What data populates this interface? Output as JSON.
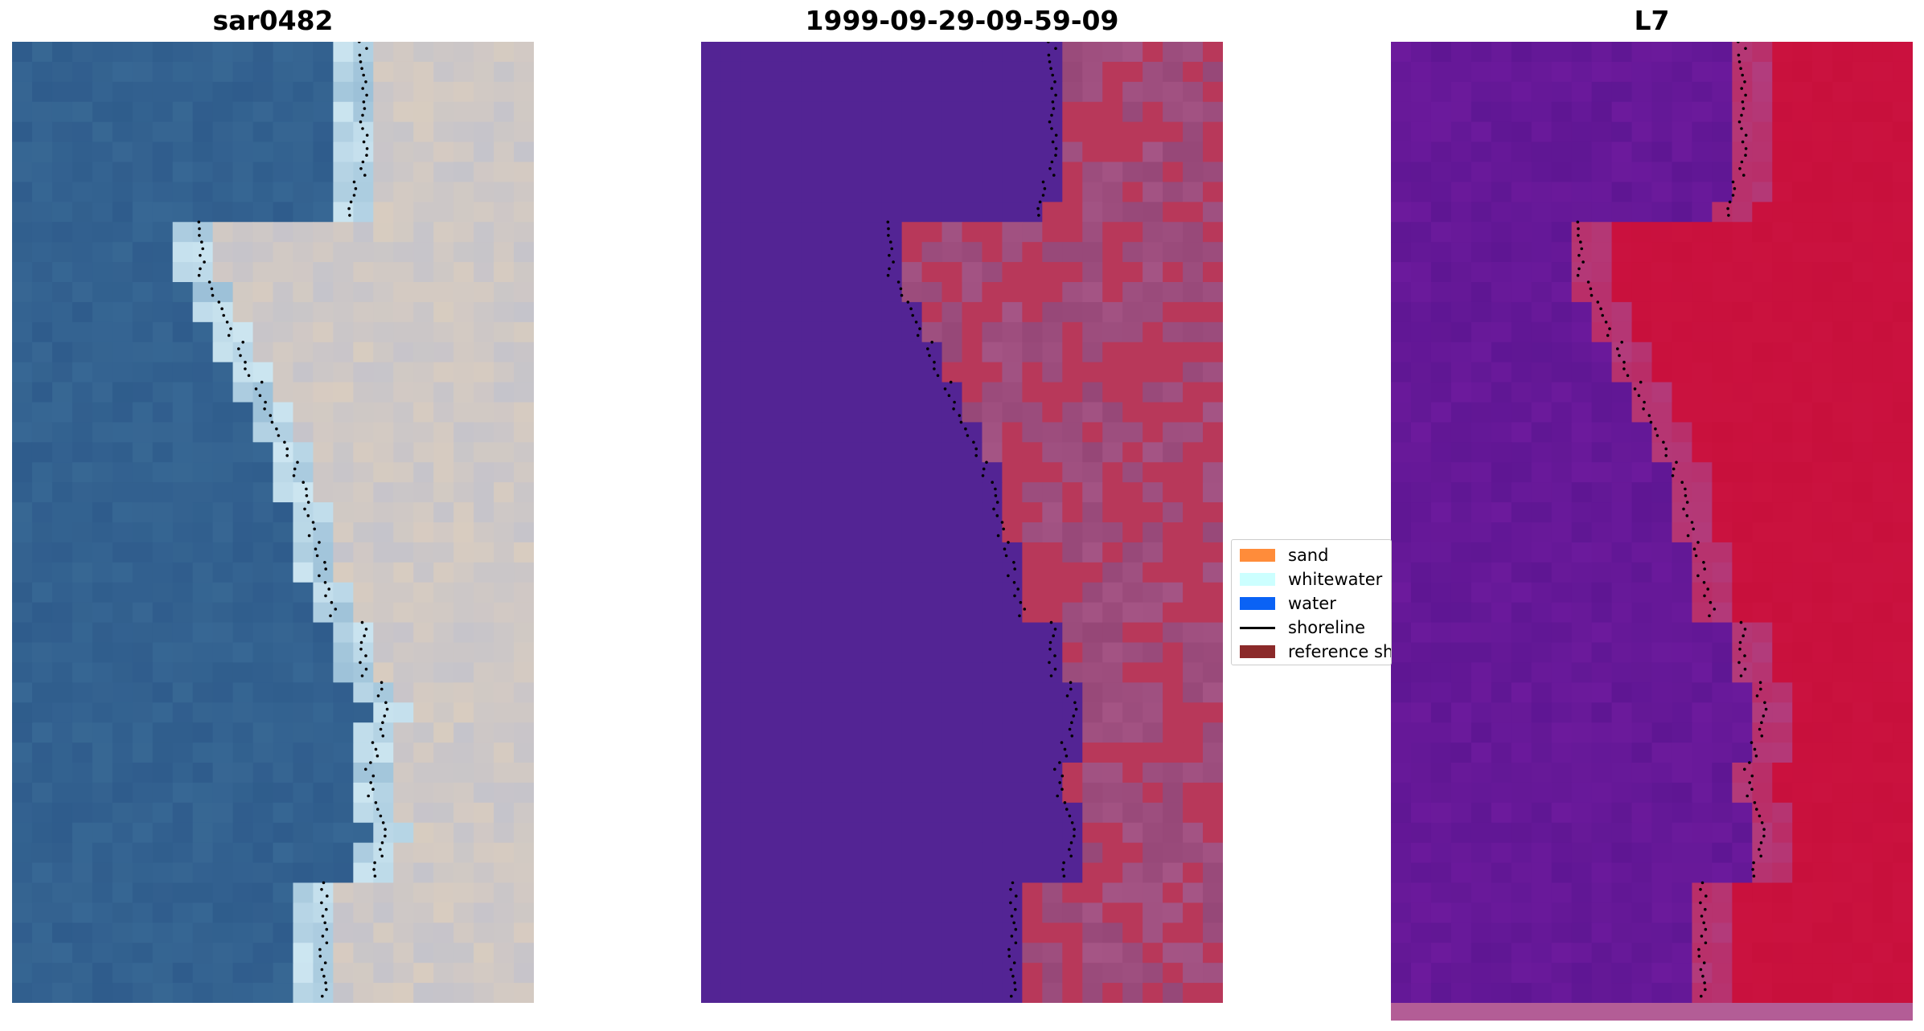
{
  "panels": [
    {
      "title": "sar0482",
      "style": "rgb"
    },
    {
      "title": "1999-09-29-09-59-09",
      "style": "classified"
    },
    {
      "title": "L7",
      "style": "index"
    }
  ],
  "legend": {
    "entries": [
      {
        "label": "sand",
        "color": "#ff8c3a",
        "kind": "patch"
      },
      {
        "label": "whitewater",
        "color": "#ccffff",
        "kind": "patch"
      },
      {
        "label": "water",
        "color": "#0a62f5",
        "kind": "patch"
      },
      {
        "label": "shoreline",
        "color": "#000000",
        "kind": "line"
      },
      {
        "label": "reference shoreline",
        "color": "#8b2a2a",
        "kind": "patch"
      }
    ]
  },
  "colors": {
    "water_rgb": "#2f5c8c",
    "sand_rgb": "#d8ccc0",
    "white_rgb": "#e8fbff",
    "class_water": "#532494",
    "class_sand_overlay": "#b8385a",
    "class_land_base": "#a55585",
    "index_low": "#6c1a9c",
    "index_high": "#c8103c",
    "shoreline_points": "#000000"
  }
}
